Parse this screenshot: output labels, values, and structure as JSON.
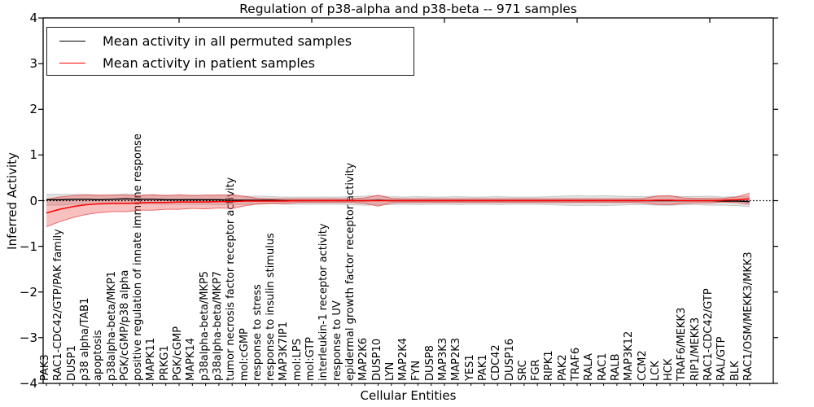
{
  "title": "Regulation of p38-alpha and p38-beta -- 971 samples",
  "axes": {
    "xlabel": "Cellular Entities",
    "ylabel": "Inferred Activity",
    "yticks": [
      {
        "label": "4",
        "value": 4
      },
      {
        "label": "3",
        "value": 3
      },
      {
        "label": "2",
        "value": 2
      },
      {
        "label": "1",
        "value": 1
      },
      {
        "label": "0",
        "value": 0
      },
      {
        "label": "−1",
        "value": -1
      },
      {
        "label": "−2",
        "value": -2
      },
      {
        "label": "−3",
        "value": -3
      },
      {
        "label": "−4",
        "value": -4
      }
    ]
  },
  "legend": {
    "items": [
      {
        "label": "Mean activity in all permuted samples",
        "color": "#000000"
      },
      {
        "label": "Mean activity in patient samples",
        "color": "#ff0000"
      }
    ]
  },
  "colors": {
    "patient_line": "#ff0000",
    "patient_band_fill": "rgba(235,60,60,0.32)",
    "patient_band_edge": "rgba(225,70,70,0.75)",
    "permuted_line": "#000000",
    "permuted_band_fill": "rgba(128,128,128,0.22)",
    "permuted_band_edge": "rgba(128,128,128,0.35)",
    "zero_line": "#000000"
  },
  "chart_data": {
    "type": "line",
    "title": "Regulation of p38-alpha and p38-beta -- 971 samples",
    "xlabel": "Cellular Entities",
    "ylabel": "Inferred Activity",
    "ylim": [
      -4,
      4
    ],
    "grid": false,
    "legend_position": "upper left",
    "zero_line_style": "dotted",
    "categories": [
      "PAK3",
      "RAC1-CDC42/GTP/PAK family",
      "DUSP1",
      "p38 alpha/TAB1",
      "apoptosis",
      "p38alpha-beta/MKP1",
      "PGK/cGMP/p38 alpha",
      "positive regulation of innate immune response",
      "MAPK11",
      "PRKG1",
      "PGK/cGMP",
      "MAPK14",
      "p38alpha-beta/MKP5",
      "p38alpha-beta/MKP7",
      "tumor necrosis factor receptor activity",
      "mol:cGMP",
      "response to stress",
      "response to insulin stimulus",
      "MAP3K7IP1",
      "mol:LPS",
      "mol:GTP",
      "interleukin-1 receptor activity",
      "response to UV",
      "epidermal growth factor receptor activity",
      "MAP2K6",
      "DUSP10",
      "LYN",
      "MAP2K4",
      "FYN",
      "DUSP8",
      "MAP3K3",
      "MAP2K3",
      "YES1",
      "PAK1",
      "CDC42",
      "DUSP16",
      "SRC",
      "FGR",
      "RIPK1",
      "PAK2",
      "TRAF6",
      "RALA",
      "RAC1",
      "RALB",
      "MAP3K12",
      "CCM2",
      "LCK",
      "HCK",
      "TRAF6/MEKK3",
      "RIP1/MEKK3",
      "RAC1-CDC42/GTP",
      "RAL/GTP",
      "BLK",
      "RAC1/OSM/MEKK3/MKK3"
    ],
    "series": [
      {
        "name": "Mean activity in all permuted samples",
        "color": "#000000",
        "values": [
          0.02,
          0.02,
          0.03,
          0.03,
          0.02,
          0.03,
          0.04,
          0.03,
          0.03,
          0.02,
          0.02,
          0.02,
          0.02,
          0.02,
          0.01,
          0.01,
          0.01,
          0.01,
          0,
          0,
          0,
          0,
          0,
          0,
          0,
          0.01,
          0,
          0,
          0,
          0,
          0,
          0,
          0,
          0,
          0,
          0,
          0,
          0,
          0,
          0,
          0,
          0,
          0,
          0,
          0,
          0,
          0,
          0,
          0,
          0,
          0,
          -0.01,
          -0.01,
          -0.02
        ],
        "std": [
          0.12,
          0.12,
          0.11,
          0.11,
          0.1,
          0.1,
          0.11,
          0.1,
          0.1,
          0.1,
          0.1,
          0.1,
          0.1,
          0.11,
          0.1,
          0.09,
          0.09,
          0.08,
          0.08,
          0.08,
          0.08,
          0.08,
          0.08,
          0.09,
          0.1,
          0.1,
          0.09,
          0.08,
          0.09,
          0.08,
          0.08,
          0.09,
          0.08,
          0.08,
          0.09,
          0.08,
          0.08,
          0.08,
          0.09,
          0.1,
          0.11,
          0.1,
          0.11,
          0.1,
          0.09,
          0.09,
          0.1,
          0.1,
          0.09,
          0.09,
          0.1,
          0.09,
          0.1,
          0.11
        ]
      },
      {
        "name": "Mean activity in patient samples",
        "color": "#ff0000",
        "values": [
          -0.27,
          -0.19,
          -0.13,
          -0.09,
          -0.07,
          -0.06,
          -0.06,
          -0.05,
          -0.04,
          -0.04,
          -0.03,
          -0.03,
          -0.03,
          -0.02,
          -0.02,
          -0.01,
          -0.01,
          -0.01,
          -0.01,
          0,
          0,
          0,
          0,
          0,
          0,
          0,
          0,
          0,
          0,
          0,
          0,
          0,
          0,
          0,
          0,
          0,
          0,
          0,
          0,
          0,
          0,
          0,
          0,
          0,
          0,
          0,
          0.01,
          0.01,
          0,
          0,
          0,
          0.01,
          0.02,
          0.04
        ],
        "std": [
          0.3,
          0.27,
          0.24,
          0.21,
          0.19,
          0.18,
          0.18,
          0.16,
          0.17,
          0.15,
          0.16,
          0.14,
          0.15,
          0.14,
          0.15,
          0.1,
          0.06,
          0.05,
          0.05,
          0.04,
          0.04,
          0.04,
          0.04,
          0.04,
          0.06,
          0.12,
          0.05,
          0.04,
          0.04,
          0.04,
          0.04,
          0.04,
          0.04,
          0.04,
          0.04,
          0.04,
          0.04,
          0.04,
          0.04,
          0.04,
          0.04,
          0.04,
          0.04,
          0.04,
          0.04,
          0.05,
          0.09,
          0.1,
          0.06,
          0.05,
          0.05,
          0.04,
          0.06,
          0.12
        ]
      }
    ]
  }
}
